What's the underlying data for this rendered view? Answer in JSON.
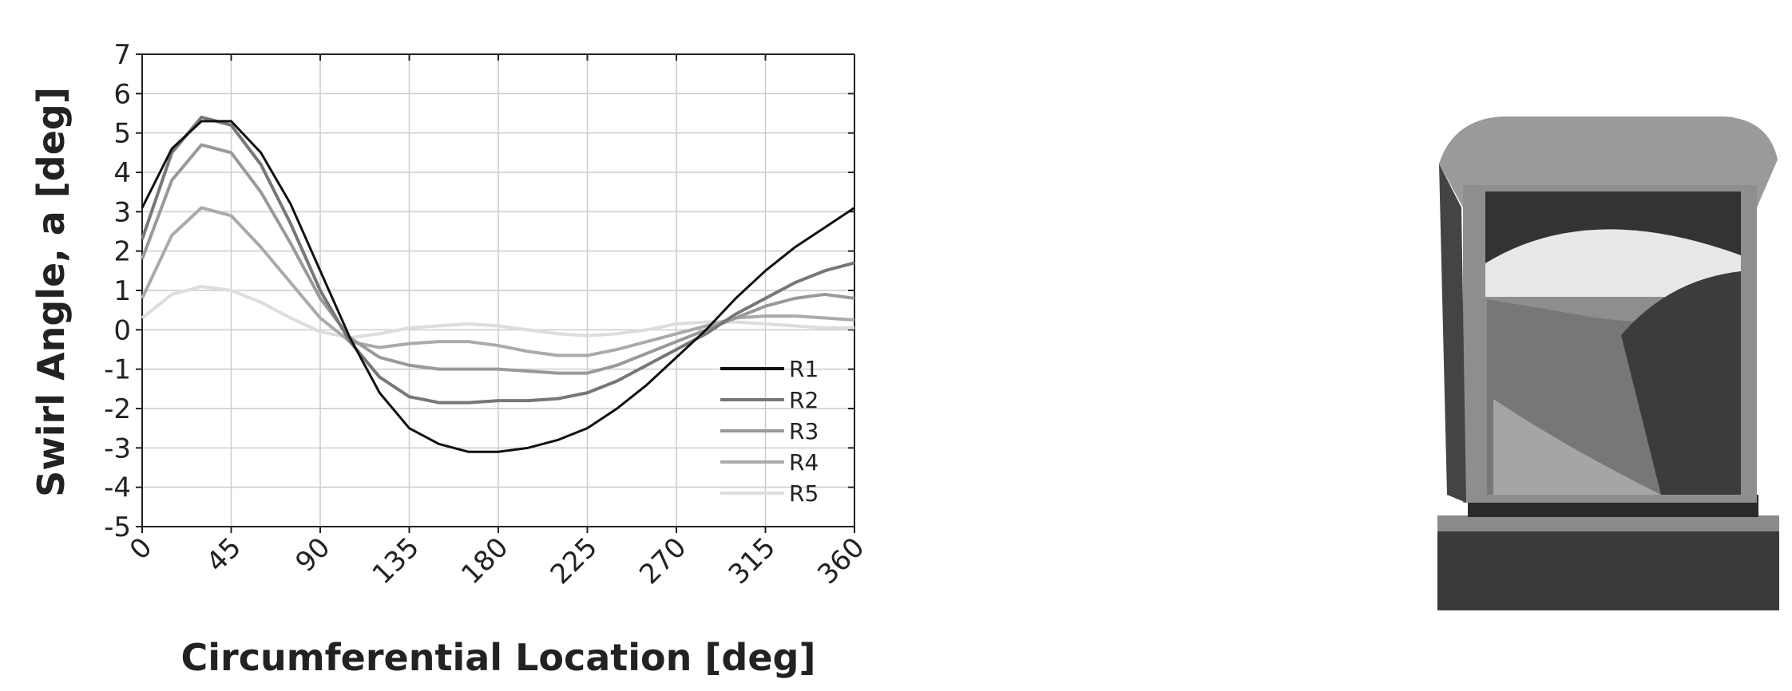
{
  "chart_data": {
    "type": "line",
    "x_label": "Circumferential Location [deg]",
    "y_label": "Swirl Angle, a [deg]",
    "x": [
      0,
      15,
      30,
      45,
      60,
      75,
      90,
      105,
      120,
      135,
      150,
      165,
      180,
      195,
      210,
      225,
      240,
      255,
      270,
      285,
      300,
      315,
      330,
      345,
      360
    ],
    "series": [
      {
        "name": "R1",
        "color": "#111111",
        "values": [
          3.1,
          4.6,
          5.3,
          5.3,
          4.5,
          3.2,
          1.5,
          -0.2,
          -1.6,
          -2.5,
          -2.9,
          -3.1,
          -3.1,
          -3.0,
          -2.8,
          -2.5,
          -2.0,
          -1.4,
          -0.7,
          0.0,
          0.8,
          1.5,
          2.1,
          2.6,
          3.1
        ]
      },
      {
        "name": "R2",
        "color": "#777777",
        "values": [
          2.3,
          4.5,
          5.4,
          5.2,
          4.2,
          2.7,
          1.0,
          -0.3,
          -1.2,
          -1.7,
          -1.85,
          -1.85,
          -1.8,
          -1.8,
          -1.75,
          -1.6,
          -1.3,
          -0.9,
          -0.5,
          -0.1,
          0.4,
          0.8,
          1.2,
          1.5,
          1.7
        ]
      },
      {
        "name": "R3",
        "color": "#999999",
        "values": [
          1.8,
          3.8,
          4.7,
          4.5,
          3.5,
          2.2,
          0.8,
          -0.2,
          -0.7,
          -0.9,
          -1.0,
          -1.0,
          -1.0,
          -1.05,
          -1.1,
          -1.1,
          -0.9,
          -0.6,
          -0.3,
          0.0,
          0.3,
          0.6,
          0.8,
          0.9,
          0.8
        ]
      },
      {
        "name": "R4",
        "color": "#aaaaaa",
        "values": [
          0.8,
          2.4,
          3.1,
          2.9,
          2.1,
          1.2,
          0.3,
          -0.3,
          -0.45,
          -0.35,
          -0.3,
          -0.3,
          -0.4,
          -0.55,
          -0.65,
          -0.65,
          -0.5,
          -0.3,
          -0.1,
          0.1,
          0.3,
          0.35,
          0.35,
          0.3,
          0.25
        ]
      },
      {
        "name": "R5",
        "color": "#dddddd",
        "values": [
          0.3,
          0.9,
          1.1,
          1.0,
          0.7,
          0.3,
          -0.05,
          -0.2,
          -0.1,
          0.05,
          0.1,
          0.15,
          0.1,
          0.0,
          -0.1,
          -0.15,
          -0.1,
          0.0,
          0.15,
          0.2,
          0.2,
          0.15,
          0.1,
          0.05,
          0.05
        ]
      }
    ],
    "xlim": [
      0,
      360
    ],
    "xticks": [
      0,
      45,
      90,
      135,
      180,
      225,
      270,
      315,
      360
    ],
    "ylim": [
      -5,
      7
    ],
    "yticks": [
      -5,
      -4,
      -3,
      -2,
      -1,
      0,
      1,
      2,
      3,
      4,
      5,
      6,
      7
    ],
    "grid": true,
    "legend": "lower right"
  }
}
